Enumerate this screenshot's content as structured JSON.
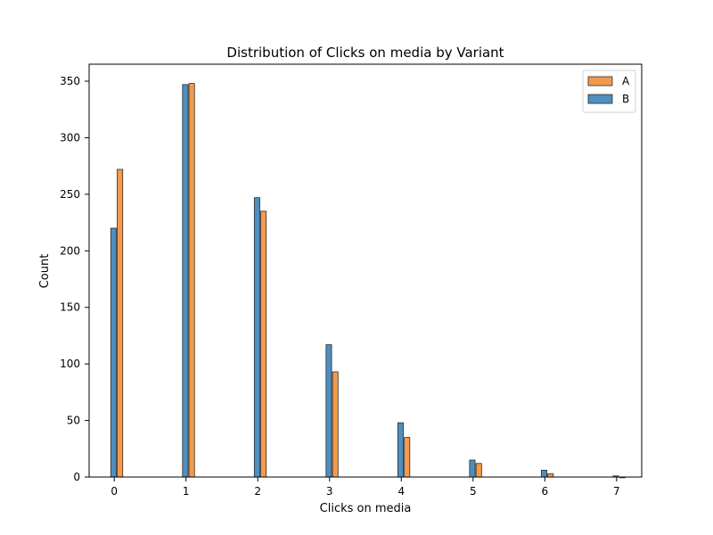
{
  "chart_data": {
    "type": "bar",
    "title": "Distribution of Clicks on media by Variant",
    "xlabel": "Clicks on media",
    "ylabel": "Count",
    "x": [
      0,
      1,
      2,
      3,
      4,
      5,
      6,
      7
    ],
    "xlim": [
      -0.35,
      7.35
    ],
    "ylim": [
      0,
      365
    ],
    "xticks": [
      "0",
      "1",
      "2",
      "3",
      "4",
      "5",
      "6",
      "7"
    ],
    "yticks": [
      "0",
      "50",
      "100",
      "150",
      "200",
      "250",
      "300",
      "350"
    ],
    "grid": false,
    "legend_position": "top-right",
    "series": [
      {
        "name": "A",
        "color": "#f5994c",
        "values": [
          272,
          348,
          235,
          93,
          35,
          12,
          3,
          0
        ]
      },
      {
        "name": "B",
        "color": "#4f8fbf",
        "values": [
          220,
          347,
          247,
          117,
          48,
          15,
          6,
          1
        ]
      }
    ]
  }
}
